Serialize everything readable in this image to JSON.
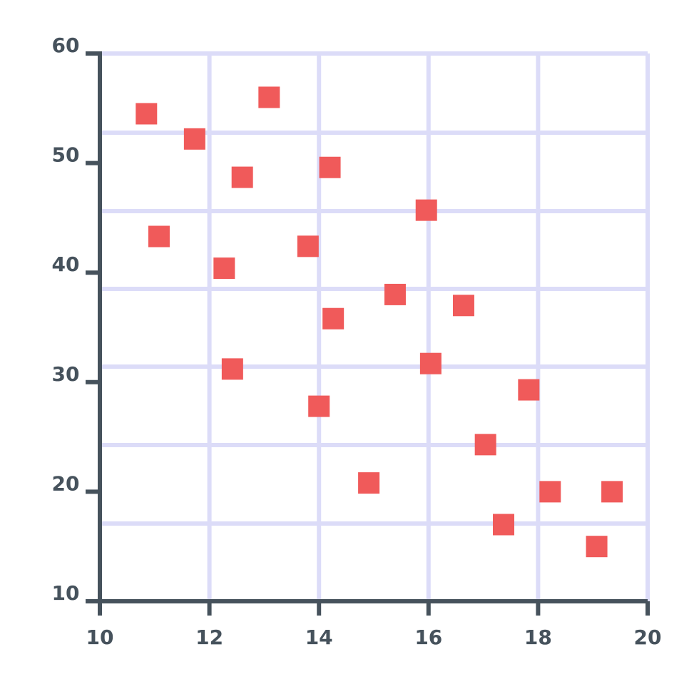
{
  "chart_data": {
    "type": "scatter",
    "x": [
      10.85,
      11.08,
      11.73,
      12.27,
      12.42,
      12.6,
      13.09,
      13.8,
      14.2,
      14.0,
      14.26,
      14.91,
      15.39,
      15.96,
      16.04,
      16.64,
      17.04,
      17.37,
      17.83,
      18.22,
      19.07,
      19.35
    ],
    "values": [
      54.5,
      43.3,
      52.2,
      40.4,
      31.2,
      48.7,
      56.0,
      42.4,
      49.6,
      27.8,
      35.8,
      20.8,
      38.0,
      45.7,
      31.7,
      37.0,
      24.3,
      17.0,
      29.3,
      20.0,
      15.0,
      20.0
    ],
    "color": "#f05a5a",
    "xlim": [
      10,
      20
    ],
    "xticks": [
      10,
      12,
      14,
      16,
      18,
      20
    ],
    "ylim": [
      10,
      60
    ],
    "yticks": [
      10,
      20,
      30,
      40,
      50,
      60
    ],
    "grid": true
  }
}
